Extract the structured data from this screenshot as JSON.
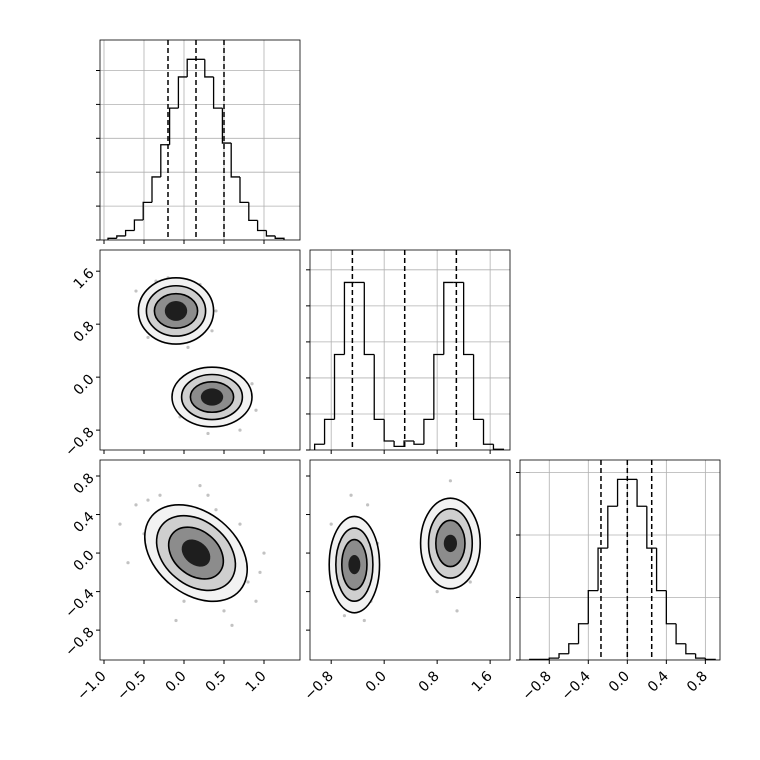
{
  "chart_data": [
    {
      "type": "histogram",
      "bins": [
        -0.95,
        -0.84,
        -0.73,
        -0.62,
        -0.51,
        -0.4,
        -0.29,
        -0.18,
        -0.07,
        0.04,
        0.15,
        0.26,
        0.37,
        0.48,
        0.59,
        0.7,
        0.81,
        0.92,
        1.03,
        1.14,
        1.25
      ],
      "values": [
        0.05,
        0.12,
        0.28,
        0.59,
        1.11,
        1.86,
        2.81,
        3.89,
        4.81,
        5.33,
        5.33,
        4.81,
        3.89,
        2.86,
        1.86,
        1.11,
        0.58,
        0.28,
        0.12,
        0.05
      ],
      "quantiles": [
        -0.2,
        0.15,
        0.5
      ],
      "xlim": [
        -1.05,
        1.45
      ],
      "ylim": [
        0,
        5.9
      ],
      "xticks": [
        {
          "value": -1,
          "label": "−1.0"
        },
        {
          "value": -0.5,
          "label": "−0.5"
        },
        {
          "value": 0,
          "label": "0.0"
        },
        0.5,
        {
          "value": 1,
          "label": "1.0"
        }
      ],
      "yticks": [
        0,
        1,
        2,
        3,
        4,
        5
      ],
      "grid": true,
      "xtick_labels": false,
      "ytick_labels": false
    },
    {
      "type": "density",
      "points": {
        "x": [
          -0.6,
          -0.45,
          0.3,
          0.35,
          -0.2,
          0.05,
          -0.5,
          0.4,
          -0.35,
          0.2,
          -0.15,
          0.8,
          0.9,
          -0.1,
          0.7,
          0.05,
          0.6,
          -0.05,
          0.85,
          0.3
        ],
        "y": [
          1.3,
          0.6,
          1.2,
          0.7,
          1.5,
          0.45,
          1.0,
          1.0,
          1.45,
          1.4,
          0.55,
          -0.3,
          -0.5,
          -0.4,
          -0.8,
          -0.15,
          0.05,
          -0.6,
          -0.1,
          -0.85
        ]
      },
      "contours": [
        {
          "x": -0.1,
          "y": 1.0,
          "rx": 0.47,
          "ry": 0.5,
          "angle": 0,
          "level": 0
        },
        {
          "x": -0.1,
          "y": 1.0,
          "rx": 0.37,
          "ry": 0.38,
          "angle": 0,
          "level": 1
        },
        {
          "x": -0.1,
          "y": 1.0,
          "rx": 0.27,
          "ry": 0.26,
          "angle": 0,
          "level": 2
        },
        {
          "x": -0.1,
          "y": 1.0,
          "rx": 0.14,
          "ry": 0.15,
          "angle": 0,
          "level": 3
        },
        {
          "x": 0.35,
          "y": -0.3,
          "rx": 0.5,
          "ry": 0.45,
          "angle": 0,
          "level": 0
        },
        {
          "x": 0.35,
          "y": -0.3,
          "rx": 0.38,
          "ry": 0.34,
          "angle": 0,
          "level": 1
        },
        {
          "x": 0.35,
          "y": -0.3,
          "rx": 0.27,
          "ry": 0.23,
          "angle": 0,
          "level": 2
        },
        {
          "x": 0.35,
          "y": -0.3,
          "rx": 0.14,
          "ry": 0.13,
          "angle": 0,
          "level": 3
        }
      ],
      "level_colors": [
        "#f2f2f2",
        "#cfcfcf",
        "#8c8c8c",
        "#1e1e1e"
      ],
      "point_color": "#9a9a9a",
      "xlim": [
        -1.05,
        1.45
      ],
      "ylim": [
        -1.1,
        1.92
      ],
      "xticks": [
        {
          "value": -1,
          "label": "−1.0"
        },
        {
          "value": -0.5,
          "label": "−0.5"
        },
        {
          "value": 0,
          "label": "0.0"
        },
        0.5,
        {
          "value": 1,
          "label": "1.0"
        }
      ],
      "yticks": [
        {
          "value": -0.8,
          "label": "−0.8"
        },
        {
          "value": 0,
          "label": "0.0"
        },
        0.8,
        1.6
      ],
      "grid": false,
      "xtick_labels": false,
      "ytick_labels": true
    },
    {
      "type": "histogram",
      "bins": [
        -1.05,
        -0.9,
        -0.75,
        -0.6,
        -0.45,
        -0.3,
        -0.15,
        0,
        0.15,
        0.3,
        0.45,
        0.6,
        0.75,
        0.9,
        1.05,
        1.2,
        1.35,
        1.5,
        1.65,
        1.8
      ],
      "values": [
        0.16,
        0.85,
        2.65,
        4.65,
        4.65,
        2.65,
        0.85,
        0.25,
        0.1,
        0.25,
        0.16,
        0.85,
        2.65,
        4.65,
        4.65,
        2.65,
        0.85,
        0.16,
        0.02
      ],
      "quantiles": [
        -0.48,
        0.31,
        1.09
      ],
      "xlim": [
        -1.12,
        1.9
      ],
      "ylim": [
        0,
        5.55
      ],
      "xticks": [
        {
          "value": -0.8,
          "label": "−0.8"
        },
        {
          "value": 0,
          "label": "0.0"
        },
        0.8,
        1.6
      ],
      "yticks": [
        0,
        1,
        2,
        3,
        4,
        5
      ],
      "grid": true,
      "xtick_labels": false,
      "ytick_labels": false
    },
    {
      "type": "density",
      "points": {
        "x": [
          -0.6,
          -0.5,
          0.8,
          0.9,
          -0.3,
          0.5,
          0.7,
          -0.7,
          0.4,
          0.0,
          -0.2,
          1.0,
          0.2,
          -0.45,
          0.6,
          0.1,
          -0.1,
          0.95,
          0.3,
          -0.8
        ],
        "y": [
          0.5,
          0.2,
          -0.3,
          -0.5,
          0.6,
          -0.6,
          0.3,
          -0.1,
          0.45,
          -0.5,
          -0.3,
          0.0,
          0.7,
          0.55,
          -0.75,
          0.35,
          -0.7,
          -0.2,
          0.6,
          0.3
        ]
      },
      "contours": [
        {
          "x": 0.15,
          "y": 0.0,
          "rx": 0.72,
          "ry": 0.42,
          "angle": 40,
          "level": 0
        },
        {
          "x": 0.15,
          "y": 0.0,
          "rx": 0.55,
          "ry": 0.33,
          "angle": 40,
          "level": 1
        },
        {
          "x": 0.15,
          "y": 0.0,
          "rx": 0.38,
          "ry": 0.23,
          "angle": 40,
          "level": 2
        },
        {
          "x": 0.15,
          "y": 0.0,
          "rx": 0.2,
          "ry": 0.12,
          "angle": 40,
          "level": 3
        }
      ],
      "level_colors": [
        "#f2f2f2",
        "#cfcfcf",
        "#8c8c8c",
        "#1e1e1e"
      ],
      "point_color": "#9a9a9a",
      "xlim": [
        -1.05,
        1.45
      ],
      "ylim": [
        -1.11,
        0.966
      ],
      "xticks": [
        {
          "value": -1,
          "label": "−1.0"
        },
        {
          "value": -0.5,
          "label": "−0.5"
        },
        {
          "value": 0,
          "label": "0.0"
        },
        0.5,
        {
          "value": 1,
          "label": "1.0"
        }
      ],
      "yticks": [
        {
          "value": -0.8,
          "label": "−0.8"
        },
        {
          "value": -0.4,
          "label": "−0.4"
        },
        {
          "value": 0,
          "label": "0.0"
        },
        0.4,
        0.8
      ],
      "grid": false,
      "xtick_labels": true,
      "ytick_labels": true
    },
    {
      "type": "density",
      "points": {
        "x": [
          -0.8,
          -0.2,
          -0.5,
          -0.3,
          -0.7,
          -0.4,
          -0.6,
          -0.1,
          -0.55,
          -0.25,
          0.7,
          1.3,
          1.0,
          0.8,
          1.2,
          1.4,
          0.6,
          1.1,
          0.9,
          1.25
        ],
        "y": [
          0.3,
          -0.5,
          0.6,
          -0.7,
          -0.4,
          0.35,
          -0.65,
          0.1,
          0.0,
          0.5,
          0.4,
          -0.3,
          0.75,
          -0.4,
          0.5,
          0.0,
          -0.1,
          -0.6,
          0.55,
          0.3
        ]
      },
      "contours": [
        {
          "x": -0.45,
          "y": -0.12,
          "rx": 0.38,
          "ry": 0.5,
          "angle": 0,
          "level": 0
        },
        {
          "x": -0.45,
          "y": -0.12,
          "rx": 0.28,
          "ry": 0.38,
          "angle": 0,
          "level": 1
        },
        {
          "x": -0.45,
          "y": -0.12,
          "rx": 0.19,
          "ry": 0.26,
          "angle": 0,
          "level": 2
        },
        {
          "x": -0.45,
          "y": -0.12,
          "rx": 0.09,
          "ry": 0.1,
          "angle": 0,
          "level": 3
        },
        {
          "x": 1.0,
          "y": 0.1,
          "rx": 0.45,
          "ry": 0.47,
          "angle": 0,
          "level": 0
        },
        {
          "x": 1.0,
          "y": 0.1,
          "rx": 0.33,
          "ry": 0.36,
          "angle": 0,
          "level": 1
        },
        {
          "x": 1.0,
          "y": 0.1,
          "rx": 0.22,
          "ry": 0.24,
          "angle": 0,
          "level": 2
        },
        {
          "x": 1.0,
          "y": 0.1,
          "rx": 0.1,
          "ry": 0.09,
          "angle": 0,
          "level": 3
        }
      ],
      "level_colors": [
        "#f2f2f2",
        "#cfcfcf",
        "#8c8c8c",
        "#1e1e1e"
      ],
      "point_color": "#9a9a9a",
      "xlim": [
        -1.12,
        1.9
      ],
      "ylim": [
        -1.11,
        0.966
      ],
      "xticks": [
        {
          "value": -0.8,
          "label": "−0.8"
        },
        {
          "value": 0,
          "label": "0.0"
        },
        0.8,
        1.6
      ],
      "yticks": [
        -0.8,
        -0.4,
        0,
        0.4,
        0.8
      ],
      "grid": false,
      "xtick_labels": true,
      "ytick_labels": false
    },
    {
      "type": "histogram",
      "bins": [
        -1.0,
        -0.9,
        -0.8,
        -0.7,
        -0.6,
        -0.5,
        -0.4,
        -0.3,
        -0.2,
        -0.1,
        0,
        0.1,
        0.2,
        0.3,
        0.4,
        0.5,
        0.6,
        0.7,
        0.8,
        0.9
      ],
      "values": [
        0.01,
        0.01,
        0.03,
        0.1,
        0.26,
        0.58,
        1.11,
        1.79,
        2.46,
        2.89,
        2.89,
        2.46,
        1.79,
        1.11,
        0.58,
        0.26,
        0.1,
        0.03,
        0.01
      ],
      "quantiles": [
        -0.27,
        0.0,
        0.25
      ],
      "xlim": [
        -1.1,
        0.95
      ],
      "ylim": [
        0,
        3.2
      ],
      "xticks": [
        {
          "value": -0.8,
          "label": "−0.8"
        },
        {
          "value": -0.4,
          "label": "−0.4"
        },
        {
          "value": 0,
          "label": "0.0"
        },
        0.4,
        0.8
      ],
      "yticks": [
        0,
        1,
        2,
        3
      ],
      "grid": true,
      "xtick_labels": true,
      "ytick_labels": false
    }
  ]
}
